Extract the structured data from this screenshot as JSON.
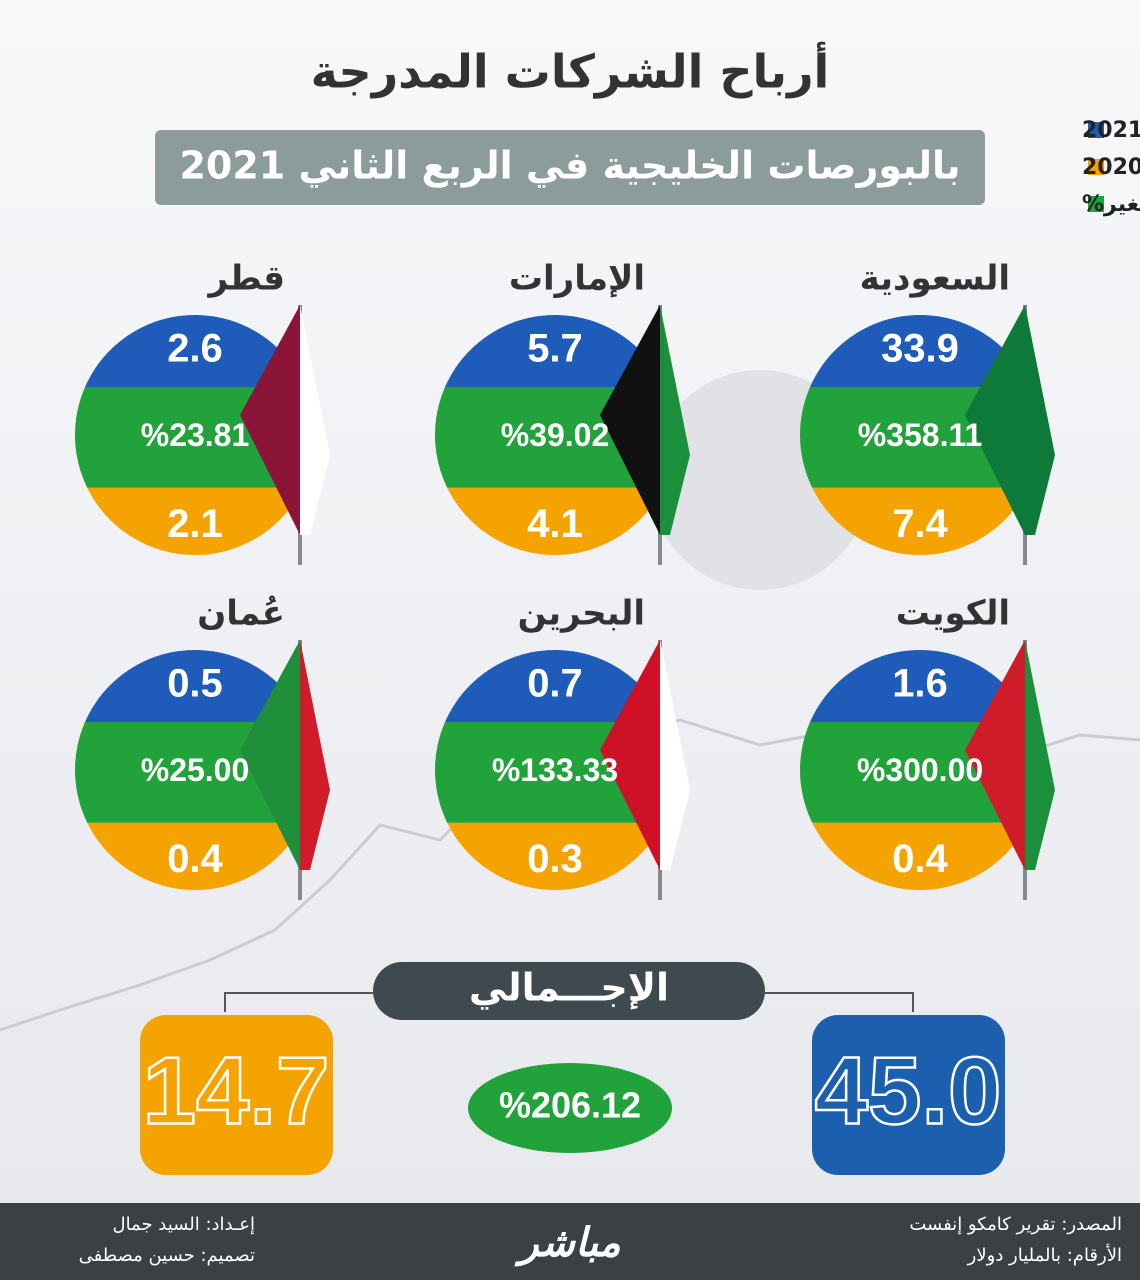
{
  "header": {
    "title": "أرباح الشركات المدرجة",
    "subtitle": "بالبورصات الخليجية في الربع الثاني 2021"
  },
  "legend": [
    {
      "label": "2021",
      "color": "#1f5bb8"
    },
    {
      "label": "2020",
      "color": "#f5a300"
    },
    {
      "label": "التغير%",
      "color": "#22a23a"
    }
  ],
  "countries": [
    {
      "name": "السعودية",
      "value_2021": "33.9",
      "change": "%358.11",
      "value_2020": "7.4"
    },
    {
      "name": "الإمارات",
      "value_2021": "5.7",
      "change": "%39.02",
      "value_2020": "4.1"
    },
    {
      "name": "قطر",
      "value_2021": "2.6",
      "change": "%23.81",
      "value_2020": "2.1"
    },
    {
      "name": "الكويت",
      "value_2021": "1.6",
      "change": "%300.00",
      "value_2020": "0.4"
    },
    {
      "name": "البحرين",
      "value_2021": "0.7",
      "change": "%133.33",
      "value_2020": "0.3"
    },
    {
      "name": "عُمان",
      "value_2021": "0.5",
      "change": "%25.00",
      "value_2020": "0.4"
    }
  ],
  "total": {
    "label": "الإجـــمالي",
    "value_2021": "45.0",
    "change": "%206.12",
    "value_2020": "14.7"
  },
  "footer": {
    "source": "المصدر: تقرير كامكو إنفست",
    "units": "الأرقام: بالمليار دولار",
    "prepared_by": "إعـداد: السيد جمال",
    "designed_by": "تصميم: حسين مصطفى",
    "logo": "مباشر"
  }
}
